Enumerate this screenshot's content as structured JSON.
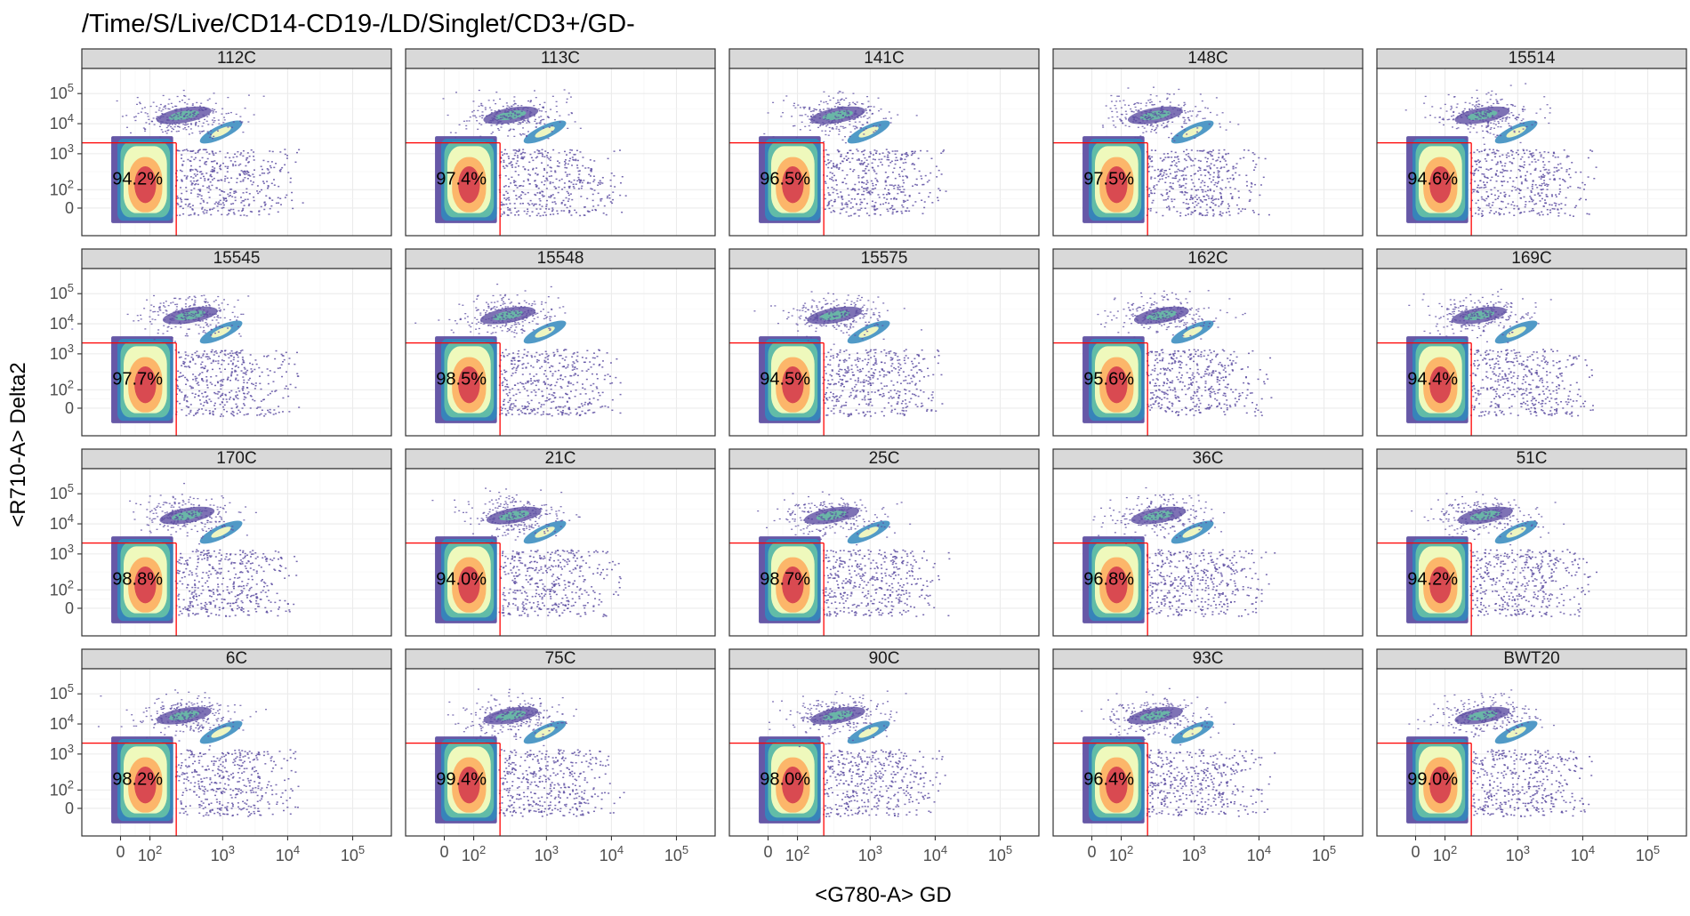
{
  "chart_data": {
    "type": "scatter",
    "title": "/Time/S/Live/CD14-CD19-/LD/Singlet/CD3+/GD-",
    "xlabel": "<G780-A> GD",
    "ylabel": "<R710-A> Delta2",
    "x_ticks": [
      "0",
      "10^2",
      "10^3",
      "10^4",
      "10^5"
    ],
    "y_ticks": [
      "0",
      "10^2",
      "10^3",
      "10^4",
      "10^5"
    ],
    "grid": true,
    "gate": {
      "x_max": 250,
      "y_max": 3000,
      "color": "#ff0000"
    },
    "panels": [
      {
        "name": "112C",
        "pct": "94.2%"
      },
      {
        "name": "113C",
        "pct": "97.4%"
      },
      {
        "name": "141C",
        "pct": "96.5%"
      },
      {
        "name": "148C",
        "pct": "97.5%"
      },
      {
        "name": "15514",
        "pct": "94.6%"
      },
      {
        "name": "15545",
        "pct": "97.7%"
      },
      {
        "name": "15548",
        "pct": "98.5%"
      },
      {
        "name": "15575",
        "pct": "94.5%"
      },
      {
        "name": "162C",
        "pct": "95.6%"
      },
      {
        "name": "169C",
        "pct": "94.4%"
      },
      {
        "name": "170C",
        "pct": "98.8%"
      },
      {
        "name": "21C",
        "pct": "94.0%"
      },
      {
        "name": "25C",
        "pct": "98.7%"
      },
      {
        "name": "36C",
        "pct": "96.8%"
      },
      {
        "name": "51C",
        "pct": "94.2%"
      },
      {
        "name": "6C",
        "pct": "98.2%"
      },
      {
        "name": "75C",
        "pct": "99.4%"
      },
      {
        "name": "90C",
        "pct": "98.0%"
      },
      {
        "name": "93C",
        "pct": "96.4%"
      },
      {
        "name": "BWT20",
        "pct": "99.0%"
      }
    ],
    "colors": {
      "high": "#d53e4f",
      "mid_high": "#fdae61",
      "mid": "#ffffbf",
      "mid_low": "#66c2a5",
      "low": "#3288bd",
      "lowest": "#5e4fa2"
    }
  }
}
